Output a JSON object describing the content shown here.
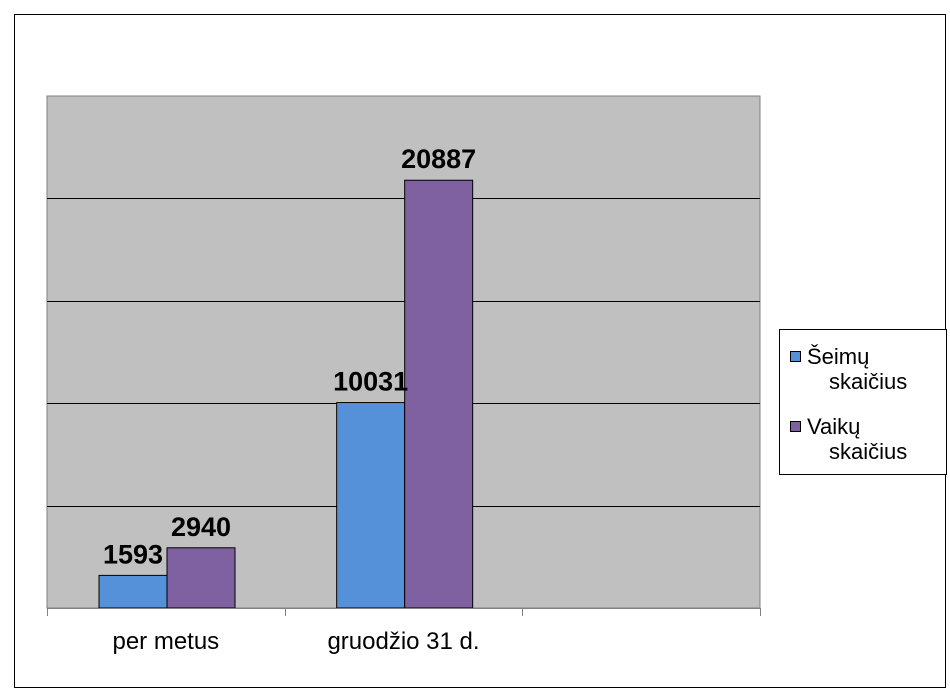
{
  "chart_data": {
    "type": "bar",
    "categories": [
      "per metus",
      "gruodžio 31 d.",
      ""
    ],
    "series": [
      {
        "name": "Šeimų skaičius",
        "values": [
          1593,
          10031,
          null
        ],
        "color": "#5591D9"
      },
      {
        "name": "Vaikų skaičius",
        "values": [
          2940,
          20887,
          null
        ],
        "color": "#7F60A0"
      }
    ],
    "ylim": [
      0,
      25000
    ],
    "gridlines": [
      5000,
      10000,
      15000,
      20000
    ],
    "plot_background": "#C0C0C0",
    "legend_position": "right",
    "grid": true
  },
  "legend": {
    "items": [
      {
        "line1": "Šeimų",
        "line2": "skaičius"
      },
      {
        "line1": "Vaikų",
        "line2": "skaičius"
      }
    ]
  }
}
